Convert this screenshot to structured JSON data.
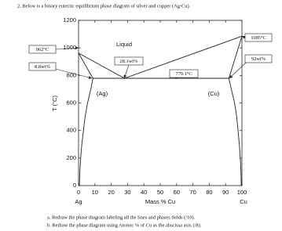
{
  "question": "2. Below is a binary eutectic equilibrium phase diagram of silver and copper (Ag-Cu).",
  "chart_data": {
    "type": "line",
    "xlabel": "Mass % Cu",
    "ylabel": "T (°C)",
    "x_end_labels": [
      "Ag",
      "Cu"
    ],
    "phase_labels": [
      "Liquid",
      "(Ag)",
      "(Cu)"
    ],
    "annotations": [
      "962°C",
      "8.8wt%",
      "28.1wt%",
      "779.1°C",
      "1085°C",
      "92wt%"
    ],
    "xlim": [
      0,
      100
    ],
    "ylim": [
      0,
      1200
    ],
    "xticks": [
      0,
      10,
      20,
      30,
      40,
      50,
      60,
      70,
      80,
      90,
      100
    ],
    "yticks": [
      0,
      200,
      400,
      600,
      800,
      1000,
      1200
    ],
    "series": [
      {
        "color": "#222222",
        "x": [
          0,
          28.1,
          100
        ],
        "values": [
          962,
          779.1,
          1085
        ]
      },
      {
        "color": "#222222",
        "x": [
          0,
          8.8
        ],
        "values": [
          962,
          779.1
        ]
      },
      {
        "color": "#222222",
        "x": [
          100,
          92
        ],
        "values": [
          1085,
          779.1
        ]
      },
      {
        "color": "#222222",
        "x": [
          8.8,
          92
        ],
        "values": [
          779.1,
          779.1
        ]
      },
      {
        "color": "#222222",
        "x": [
          8.8,
          7.5,
          5.5,
          4,
          3,
          2,
          1.3,
          0.8,
          0.5
        ],
        "values": [
          779.1,
          700,
          600,
          500,
          400,
          300,
          200,
          100,
          0
        ]
      },
      {
        "color": "#222222",
        "x": [
          92,
          93.5,
          95.5,
          96.8,
          97.6,
          98.4,
          99,
          99.4,
          99.6
        ],
        "values": [
          779.1,
          700,
          600,
          500,
          400,
          300,
          200,
          100,
          0
        ]
      }
    ]
  },
  "tasks": [
    "a. Redraw the phase diagram labeling all the lines and phases fields (/10).",
    "b. Redraw the phase diagram using Atomic % of Cu as the abscissa axis (/8)."
  ]
}
